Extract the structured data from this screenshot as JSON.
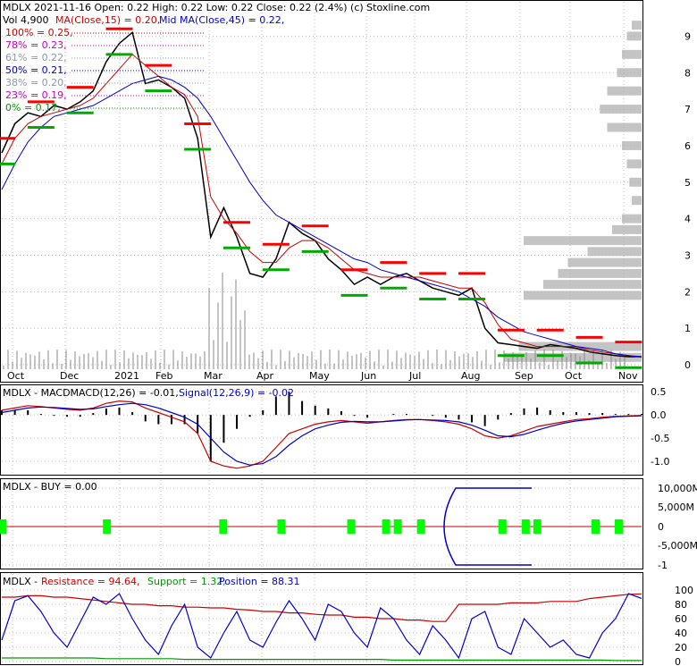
{
  "header": {
    "line1": "MDLX  2021-11-16 Open: 0.22  High: 0.22  Low: 0.22  Close: 0.22 (2.4%)  (c) Stoxline.com",
    "vol": "Vol 4,900",
    "ma_fast": "MA(Close,15) = 0.20,",
    "ma_slow": "Mid MA(Close,45) = 0.22,"
  },
  "fib_levels": [
    {
      "label": "100% = 0.25,",
      "color": "#cc0000"
    },
    {
      "label": "78% = 0.23,",
      "color": "#cc00cc"
    },
    {
      "label": "61% = 0.22,",
      "color": "#8899aa"
    },
    {
      "label": "50% = 0.21,",
      "color": "#0000cc"
    },
    {
      "label": "38% = 0.20,",
      "color": "#8899aa"
    },
    {
      "label": "23% = 0.19,",
      "color": "#cc00cc"
    },
    {
      "label": "0% = 0.17,",
      "color": "#009900"
    }
  ],
  "colors": {
    "price": "#000000",
    "ma_fast": "#cc0000",
    "ma_slow": "#0000cc",
    "resistance": "#ff0000",
    "support": "#00aa00",
    "volume_profile": "#b0b0b0",
    "grid": "#bbbbbb",
    "signal_bar": "#00ff00"
  },
  "chart_data": [
    {
      "type": "line",
      "panel": "price",
      "x_ticks": [
        "Oct",
        "Dec",
        "2021",
        "Feb",
        "Mar",
        "Apr",
        "May",
        "Jun",
        "Jul",
        "Aug",
        "Sep",
        "Oct",
        "Nov"
      ],
      "y_ticks": [
        "9",
        "8",
        "7",
        "6",
        "5",
        "4",
        "3",
        "2",
        "1",
        "0"
      ],
      "ylim": [
        0,
        9.5
      ],
      "series": [
        {
          "name": "Close",
          "values": [
            5.8,
            6.6,
            6.9,
            6.8,
            7.1,
            7.0,
            7.2,
            7.5,
            8.3,
            8.8,
            9.1,
            7.7,
            7.8,
            7.6,
            7.3,
            6.2,
            3.5,
            4.3,
            3.5,
            2.5,
            2.4,
            2.9,
            3.9,
            3.6,
            3.4,
            2.9,
            2.6,
            2.2,
            2.4,
            2.2,
            2.4,
            2.5,
            2.3,
            2.1,
            2.0,
            1.9,
            2.1,
            1.0,
            0.6,
            0.55,
            0.5,
            0.45,
            0.55,
            0.5,
            0.45,
            0.35,
            0.3,
            0.25,
            0.22,
            0.22
          ]
        },
        {
          "name": "MA(Close,15)",
          "values": [
            5.5,
            6.2,
            6.6,
            6.8,
            6.9,
            7.0,
            7.1,
            7.3,
            7.7,
            8.1,
            8.5,
            8.2,
            7.9,
            7.6,
            7.4,
            6.8,
            4.6,
            4.0,
            3.6,
            3.1,
            2.8,
            2.8,
            3.2,
            3.4,
            3.4,
            3.2,
            2.9,
            2.6,
            2.5,
            2.4,
            2.4,
            2.4,
            2.4,
            2.3,
            2.2,
            2.1,
            2.1,
            1.7,
            1.1,
            0.7,
            0.6,
            0.5,
            0.5,
            0.5,
            0.5,
            0.4,
            0.35,
            0.3,
            0.25,
            0.2
          ]
        },
        {
          "name": "Mid MA(Close,45)",
          "values": [
            4.8,
            5.5,
            6.1,
            6.5,
            6.8,
            6.9,
            7.0,
            7.1,
            7.3,
            7.5,
            7.7,
            7.8,
            7.9,
            7.8,
            7.6,
            7.3,
            6.8,
            6.2,
            5.6,
            5.0,
            4.5,
            4.1,
            3.9,
            3.7,
            3.5,
            3.3,
            3.1,
            2.9,
            2.8,
            2.6,
            2.5,
            2.4,
            2.3,
            2.2,
            2.1,
            2.0,
            1.8,
            1.6,
            1.3,
            1.1,
            0.9,
            0.8,
            0.7,
            0.6,
            0.5,
            0.45,
            0.4,
            0.3,
            0.25,
            0.22
          ]
        }
      ]
    },
    {
      "type": "line",
      "panel": "macd",
      "label": "MDLX - MACDMACD(12,26) = -0.01,",
      "signal_label": "Signal(12,26,9) = -0.02",
      "y_ticks": [
        "0.5",
        "0.0",
        "-0.5",
        "-1.0"
      ],
      "ylim": [
        -1.25,
        0.6
      ],
      "series": [
        {
          "name": "MACD",
          "values": [
            0.1,
            0.15,
            0.2,
            0.18,
            0.15,
            0.12,
            0.1,
            0.15,
            0.25,
            0.3,
            0.28,
            0.15,
            0.05,
            -0.05,
            -0.15,
            -0.4,
            -1.0,
            -1.1,
            -1.15,
            -1.1,
            -1.0,
            -0.7,
            -0.4,
            -0.3,
            -0.2,
            -0.15,
            -0.12,
            -0.15,
            -0.18,
            -0.15,
            -0.12,
            -0.1,
            -0.1,
            -0.12,
            -0.15,
            -0.2,
            -0.3,
            -0.45,
            -0.5,
            -0.45,
            -0.35,
            -0.25,
            -0.2,
            -0.15,
            -0.1,
            -0.08,
            -0.05,
            -0.03,
            -0.02,
            -0.01
          ]
        },
        {
          "name": "Signal",
          "values": [
            0.05,
            0.1,
            0.15,
            0.17,
            0.16,
            0.14,
            0.12,
            0.13,
            0.18,
            0.22,
            0.25,
            0.22,
            0.15,
            0.05,
            -0.05,
            -0.2,
            -0.5,
            -0.8,
            -1.0,
            -1.08,
            -1.05,
            -0.9,
            -0.65,
            -0.45,
            -0.3,
            -0.22,
            -0.16,
            -0.14,
            -0.15,
            -0.15,
            -0.13,
            -0.11,
            -0.1,
            -0.11,
            -0.12,
            -0.15,
            -0.22,
            -0.33,
            -0.45,
            -0.47,
            -0.42,
            -0.33,
            -0.25,
            -0.18,
            -0.13,
            -0.1,
            -0.07,
            -0.04,
            -0.03,
            -0.02
          ]
        }
      ]
    },
    {
      "type": "bar",
      "panel": "buy",
      "label": "MDLX - BUY = 0.00",
      "y_ticks": [
        "10,000M",
        "5,000M",
        "0",
        "-5,000M",
        "-1"
      ],
      "signals": [
        0,
        9,
        19,
        24,
        30,
        33,
        34,
        36,
        43,
        45,
        46,
        51,
        53
      ]
    },
    {
      "type": "line",
      "panel": "position",
      "label_prefix": "MDLX - ",
      "resistance_label": "Resistance = 94.64,",
      "support_label": "Support = 1.32,",
      "position_label": "Position = 88.31",
      "y_ticks": [
        "100",
        "80",
        "60",
        "40",
        "20",
        "0"
      ],
      "ylim": [
        0,
        100
      ],
      "series": [
        {
          "name": "Resistance",
          "values": [
            90,
            90,
            92,
            92,
            90,
            90,
            88,
            86,
            84,
            82,
            80,
            80,
            78,
            78,
            76,
            76,
            75,
            75,
            73,
            72,
            70,
            70,
            68,
            68,
            66,
            65,
            65,
            62,
            62,
            60,
            60,
            58,
            58,
            56,
            56,
            80,
            80,
            80,
            80,
            82,
            82,
            82,
            84,
            84,
            84,
            88,
            90,
            92,
            94,
            94.64
          ]
        },
        {
          "name": "Support",
          "values": [
            5,
            5,
            5,
            5,
            5,
            5,
            5,
            5,
            4,
            4,
            4,
            4,
            4,
            4,
            3,
            3,
            3,
            3,
            3,
            3,
            3,
            3,
            3,
            3,
            3,
            3,
            3,
            3,
            3,
            3,
            2,
            2,
            2,
            2,
            2,
            2,
            2,
            2,
            2,
            2,
            2,
            2,
            2,
            2,
            2,
            2,
            2,
            1.5,
            1.32,
            1.32
          ]
        },
        {
          "name": "Position",
          "values": [
            30,
            85,
            92,
            70,
            40,
            20,
            55,
            90,
            80,
            95,
            60,
            30,
            10,
            50,
            80,
            20,
            5,
            40,
            70,
            30,
            20,
            55,
            85,
            60,
            30,
            80,
            70,
            40,
            20,
            75,
            60,
            30,
            10,
            50,
            30,
            5,
            60,
            70,
            20,
            10,
            60,
            40,
            20,
            30,
            10,
            5,
            40,
            60,
            95,
            88.31
          ]
        }
      ]
    }
  ]
}
